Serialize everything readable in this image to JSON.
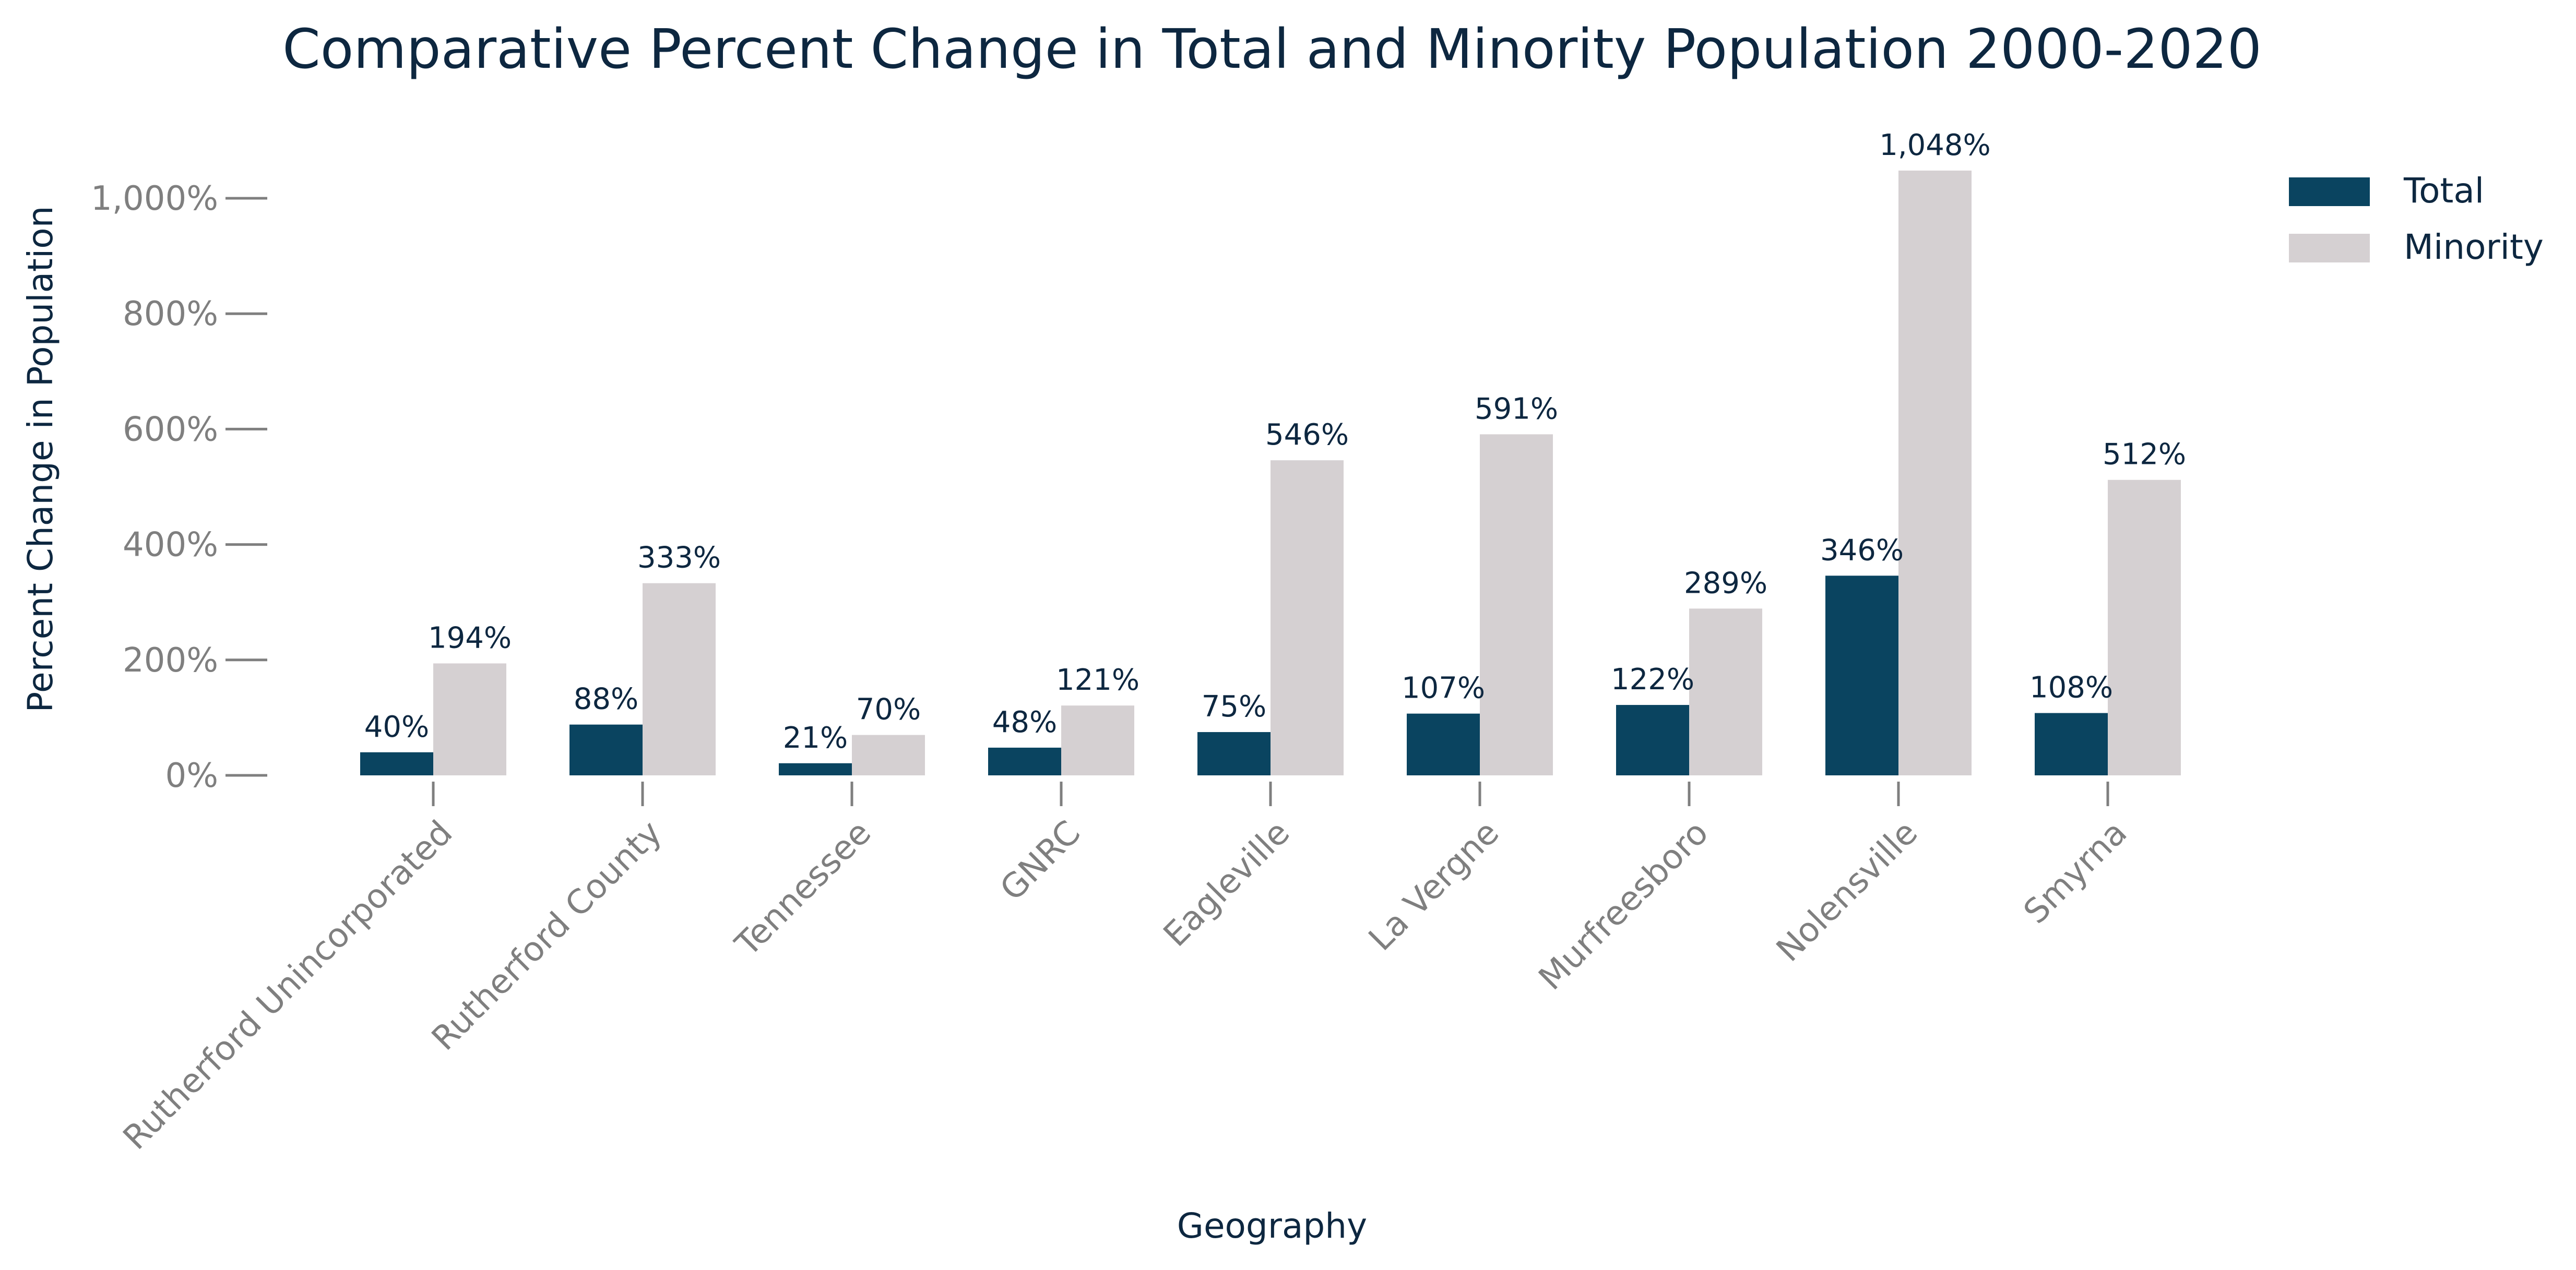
{
  "chart_data": {
    "type": "bar",
    "title": "Comparative Percent Change in Total and Minority Population 2000-2020",
    "xlabel": "Geography",
    "ylabel": "Percent Change in Population",
    "categories": [
      "Rutherford Unincorporated",
      "Rutherford County",
      "Tennessee",
      "GNRC",
      "Eagleville",
      "La Vergne",
      "Murfreesboro",
      "Nolensville",
      "Smyrna"
    ],
    "series": [
      {
        "name": "Total",
        "color": "#0a4460",
        "values": [
          40,
          88,
          21,
          48,
          75,
          107,
          122,
          346,
          108
        ],
        "labels": [
          "40%",
          "88%",
          "21%",
          "48%",
          "75%",
          "107%",
          "122%",
          "346%",
          "108%"
        ]
      },
      {
        "name": "Minority",
        "color": "#d5d0d2",
        "values": [
          194,
          333,
          70,
          121,
          546,
          591,
          289,
          1048,
          512
        ],
        "labels": [
          "194%",
          "333%",
          "70%",
          "121%",
          "546%",
          "591%",
          "289%",
          "1,048%",
          "512%"
        ]
      }
    ],
    "ylim": [
      0,
      1050
    ],
    "yticks": [
      0,
      200,
      400,
      600,
      800,
      1000
    ],
    "ytick_labels": [
      "0%",
      "200%",
      "400%",
      "600%",
      "800%",
      "1,000%"
    ],
    "grid": false,
    "legend": "top-right"
  }
}
